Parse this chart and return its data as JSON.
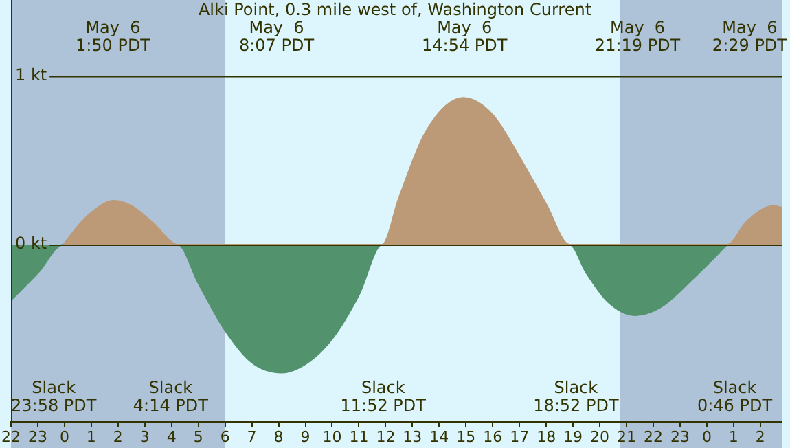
{
  "chart_data": {
    "type": "area",
    "title": "Alki Point, 0.3 mile west of, Washington Current",
    "series": [
      {
        "color": "#bc9a78",
        "x": [
          "--05-05T23:58",
          "--05-06T00:30",
          "--05-06T01:00",
          "--05-06T01:50",
          "--05-06T02:30",
          "--05-06T03:18",
          "--05-06T04:14",
          "--05-06T11:52",
          "--05-06T12:30",
          "--05-06T13:30",
          "--05-06T14:54",
          "--05-06T16:00",
          "--05-06T17:00",
          "--05-06T18:00",
          "--05-06T18:52",
          "--05-07T00:46",
          "--05-07T01:30",
          "--05-07T02:29",
          "--05-07T02:48"
        ],
        "values": [
          0,
          0.11,
          0.19,
          0.26,
          0.23,
          0.13,
          0,
          0,
          0.28,
          0.67,
          0.87,
          0.77,
          0.52,
          0.24,
          0,
          0,
          0.14,
          0.23,
          0.22
        ]
      },
      {
        "color": "#52936e",
        "x": [
          "--05-05T22:00",
          "--05-05T23:00",
          "--05-05T23:58",
          "--05-06T04:14",
          "--05-06T05:00",
          "--05-06T06:00",
          "--05-06T07:00",
          "--05-06T08:07",
          "--05-06T09:00",
          "--05-06T10:00",
          "--05-06T11:00",
          "--05-06T11:52",
          "--05-06T18:52",
          "--05-06T19:30",
          "--05-06T20:18",
          "--05-06T21:19",
          "--05-06T22:18",
          "--05-06T23:30",
          "--05-07T00:46"
        ],
        "values": [
          -0.33,
          -0.17,
          0,
          0,
          -0.23,
          -0.51,
          -0.7,
          -0.76,
          -0.71,
          -0.56,
          -0.3,
          0,
          0,
          -0.17,
          -0.34,
          -0.42,
          -0.37,
          -0.2,
          0
        ]
      }
    ],
    "xlim": [
      "--05-05T22:00",
      "--05-07T02:48"
    ],
    "xticks": [
      {
        "value": "--05-05T22:00",
        "label": "22"
      },
      {
        "value": "--05-05T23:00",
        "label": "23"
      },
      {
        "value": "--05-06T00:00",
        "label": "0"
      },
      {
        "value": "--05-06T01:00",
        "label": "1"
      },
      {
        "value": "--05-06T02:00",
        "label": "2"
      },
      {
        "value": "--05-06T03:00",
        "label": "3"
      },
      {
        "value": "--05-06T04:00",
        "label": "4"
      },
      {
        "value": "--05-06T05:00",
        "label": "5"
      },
      {
        "value": "--05-06T06:00",
        "label": "6"
      },
      {
        "value": "--05-06T07:00",
        "label": "7"
      },
      {
        "value": "--05-06T08:00",
        "label": "8"
      },
      {
        "value": "--05-06T09:00",
        "label": "9"
      },
      {
        "value": "--05-06T10:00",
        "label": "10"
      },
      {
        "value": "--05-06T11:00",
        "label": "11"
      },
      {
        "value": "--05-06T12:00",
        "label": "12"
      },
      {
        "value": "--05-06T13:00",
        "label": "13"
      },
      {
        "value": "--05-06T14:00",
        "label": "14"
      },
      {
        "value": "--05-06T15:00",
        "label": "15"
      },
      {
        "value": "--05-06T16:00",
        "label": "16"
      },
      {
        "value": "--05-06T17:00",
        "label": "17"
      },
      {
        "value": "--05-06T18:00",
        "label": "18"
      },
      {
        "value": "--05-06T19:00",
        "label": "19"
      },
      {
        "value": "--05-06T20:00",
        "label": "20"
      },
      {
        "value": "--05-06T21:00",
        "label": "21"
      },
      {
        "value": "--05-06T22:00",
        "label": "22"
      },
      {
        "value": "--05-06T23:00",
        "label": "23"
      },
      {
        "value": "--05-07T00:00",
        "label": "0"
      },
      {
        "value": "--05-07T01:00",
        "label": "1"
      },
      {
        "value": "--05-07T02:00",
        "label": "2"
      }
    ],
    "ylim": [
      -1.05,
      1.45
    ],
    "yticks": [
      {
        "value": 0,
        "label": "0 kt"
      },
      {
        "value": 1,
        "label": "1 kt"
      }
    ],
    "grid": "y",
    "legend": false,
    "bands": [
      {
        "axis": "x",
        "from": "--05-05T22:00",
        "to": "--05-06T06:00",
        "color": "#afc3d8"
      },
      {
        "axis": "x",
        "from": "--05-06T20:45",
        "to": "--05-07T02:48",
        "color": "#afc3d8"
      }
    ],
    "annotations": [
      "Slack\n23:58 PDT",
      "May  6\n1:50 PDT",
      "Slack\n4:14 PDT",
      "May  6\n8:07 PDT",
      "Slack\n11:52 PDT",
      "May  6\n14:54 PDT",
      "Slack\n18:52 PDT",
      "May  6\n21:19 PDT",
      "Slack\n0:46 PDT",
      "May  6\n2:29 PDT"
    ]
  }
}
